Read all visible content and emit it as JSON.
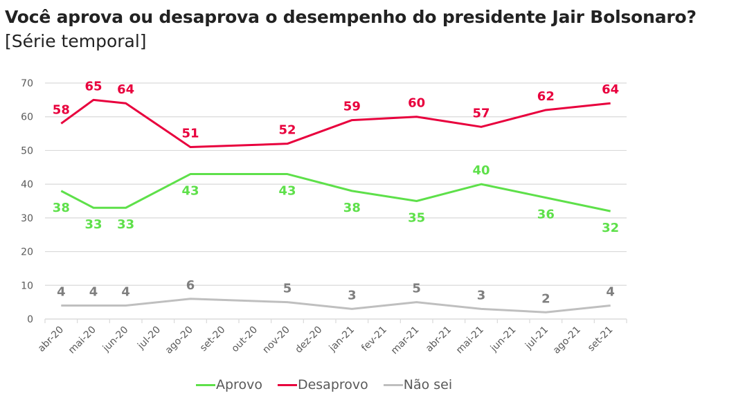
{
  "header": {
    "title": "Você aprova ou desaprova o desempenho do presidente Jair Bolsonaro?",
    "subtitle": "[Série temporal]"
  },
  "chart_data": {
    "type": "line",
    "title": "Você aprova ou desaprova o desempenho do presidente Jair Bolsonaro?",
    "subtitle": "[Série temporal]",
    "xlabel": "",
    "ylabel": "",
    "ylim": [
      0,
      70
    ],
    "yticks": [
      0,
      10,
      20,
      30,
      40,
      50,
      60,
      70
    ],
    "grid": true,
    "legend_position": "bottom",
    "categories": [
      "abr-20",
      "mai-20",
      "jun-20",
      "jul-20",
      "ago-20",
      "set-20",
      "out-20",
      "nov-20",
      "dez-20",
      "jan-21",
      "fev-21",
      "mar-21",
      "abr-21",
      "mai-21",
      "jun-21",
      "jul-21",
      "ago-21",
      "set-21"
    ],
    "series": [
      {
        "name": "Aprovo",
        "color": "#5ee04a",
        "points": [
          {
            "x": "abr-20",
            "y": 38
          },
          {
            "x": "mai-20",
            "y": 33
          },
          {
            "x": "jun-20",
            "y": 33
          },
          {
            "x": "ago-20",
            "y": 43
          },
          {
            "x": "nov-20",
            "y": 43
          },
          {
            "x": "jan-21",
            "y": 38
          },
          {
            "x": "mar-21",
            "y": 35
          },
          {
            "x": "mai-21",
            "y": 40
          },
          {
            "x": "jul-21",
            "y": 36
          },
          {
            "x": "set-21",
            "y": 32
          }
        ]
      },
      {
        "name": "Desaprovo",
        "color": "#e8003d",
        "points": [
          {
            "x": "abr-20",
            "y": 58
          },
          {
            "x": "mai-20",
            "y": 65
          },
          {
            "x": "jun-20",
            "y": 64
          },
          {
            "x": "ago-20",
            "y": 51
          },
          {
            "x": "nov-20",
            "y": 52
          },
          {
            "x": "jan-21",
            "y": 59
          },
          {
            "x": "mar-21",
            "y": 60
          },
          {
            "x": "mai-21",
            "y": 57
          },
          {
            "x": "jul-21",
            "y": 62
          },
          {
            "x": "set-21",
            "y": 64
          }
        ]
      },
      {
        "name": "Não sei",
        "color": "#bfbfbf",
        "label_color": "#7f7f7f",
        "points": [
          {
            "x": "abr-20",
            "y": 4
          },
          {
            "x": "mai-20",
            "y": 4
          },
          {
            "x": "jun-20",
            "y": 4
          },
          {
            "x": "ago-20",
            "y": 6
          },
          {
            "x": "nov-20",
            "y": 5
          },
          {
            "x": "jan-21",
            "y": 3
          },
          {
            "x": "mar-21",
            "y": 5
          },
          {
            "x": "mai-21",
            "y": 3
          },
          {
            "x": "jul-21",
            "y": 2
          },
          {
            "x": "set-21",
            "y": 4
          }
        ]
      }
    ]
  },
  "legend": {
    "items": [
      {
        "label": "Aprovo",
        "color": "#5ee04a"
      },
      {
        "label": "Desaprovo",
        "color": "#e8003d"
      },
      {
        "label": "Não sei",
        "color": "#bfbfbf"
      }
    ]
  }
}
